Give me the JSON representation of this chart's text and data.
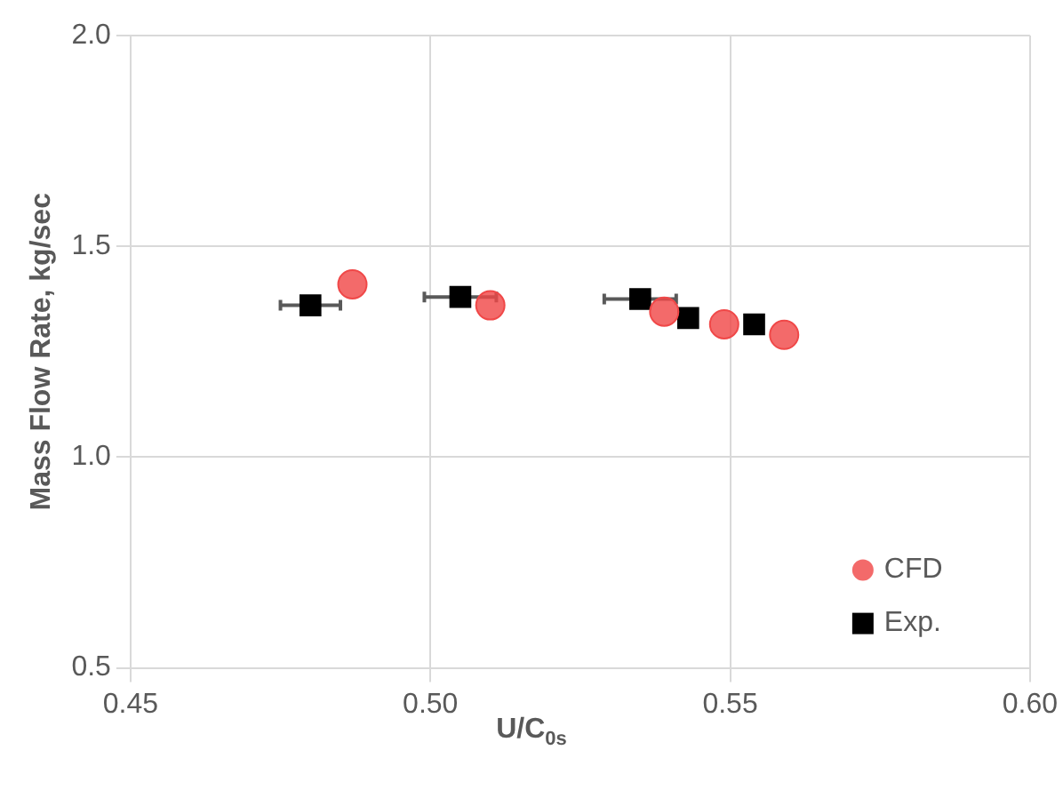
{
  "chart_data": {
    "type": "scatter",
    "xlabel": "U/C$_{0s}$",
    "ylabel": "Mass Flow Rate, kg/sec",
    "xlim": [
      0.45,
      0.6
    ],
    "xticks": [
      {
        "value": 0.45,
        "label": "0.45"
      },
      {
        "value": 0.5,
        "label": "0.50"
      },
      {
        "value": 0.55,
        "label": "0.55"
      },
      {
        "value": 0.6,
        "label": "0.60"
      }
    ],
    "ylim": [
      0.5,
      2.0
    ],
    "yticks": [
      {
        "value": 0.5,
        "label": "0.5"
      },
      {
        "value": 1.0,
        "label": "1.0"
      },
      {
        "value": 1.5,
        "label": "1.5"
      },
      {
        "value": 2.0,
        "label": "2.0"
      }
    ],
    "grid": true,
    "legend": "bottom right",
    "series": [
      {
        "name": "CFD",
        "color": "#f04848",
        "marker": "circle",
        "x": [
          0.487,
          0.51,
          0.539,
          0.549,
          0.559
        ],
        "values": [
          1.41,
          1.36,
          1.345,
          1.315,
          1.29
        ]
      },
      {
        "name": "Exp.",
        "color": "#000000",
        "marker": "square",
        "x": [
          0.48,
          0.505,
          0.535,
          0.543,
          0.554
        ],
        "values": [
          1.36,
          1.38,
          1.375,
          1.33,
          1.315
        ],
        "xerrors": [
          0.005,
          0.006,
          0.006,
          null,
          null
        ]
      }
    ]
  }
}
